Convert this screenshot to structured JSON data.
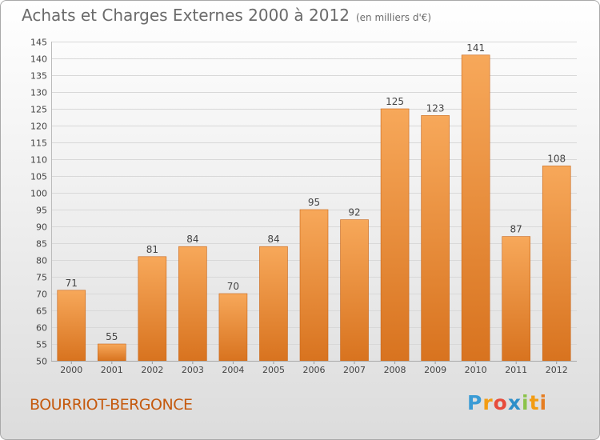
{
  "header": {
    "title": "Achats et Charges Externes 2000 à 2012",
    "subtitle": "(en milliers d'€)"
  },
  "footer": {
    "commune": "BOURRIOT-BERGONCE",
    "logo": "Proxiti",
    "logo_letters": [
      {
        "char": "P",
        "color": "#3a9bd5"
      },
      {
        "char": "r",
        "color": "#f39c12"
      },
      {
        "char": "o",
        "color": "#e74c3c"
      },
      {
        "char": "x",
        "color": "#2c8fc9"
      },
      {
        "char": "i",
        "color": "#8bc34a"
      },
      {
        "char": "t",
        "color": "#f39c12"
      },
      {
        "char": "i",
        "color": "#e67e22"
      }
    ]
  },
  "chart_data": {
    "type": "bar",
    "title": "Achats et Charges Externes 2000 à 2012",
    "subtitle": "(en milliers d'€)",
    "xlabel": "",
    "ylabel": "",
    "categories": [
      "2000",
      "2001",
      "2002",
      "2003",
      "2004",
      "2005",
      "2006",
      "2007",
      "2008",
      "2009",
      "2010",
      "2011",
      "2012"
    ],
    "values": [
      71,
      55,
      81,
      84,
      70,
      84,
      95,
      92,
      125,
      123,
      141,
      87,
      108
    ],
    "ylim": [
      50,
      145
    ],
    "yticks": [
      50,
      55,
      60,
      65,
      70,
      75,
      80,
      85,
      90,
      95,
      100,
      105,
      110,
      115,
      120,
      125,
      130,
      135,
      140,
      145
    ],
    "grid": true,
    "legend": "none",
    "colors": {
      "bar_top": "#f7a85a",
      "bar_bottom": "#d8731f",
      "bar_edge": "#c8661a",
      "grid": "#d8d8d8",
      "axis_text": "#444444",
      "label_text": "#444444"
    }
  }
}
